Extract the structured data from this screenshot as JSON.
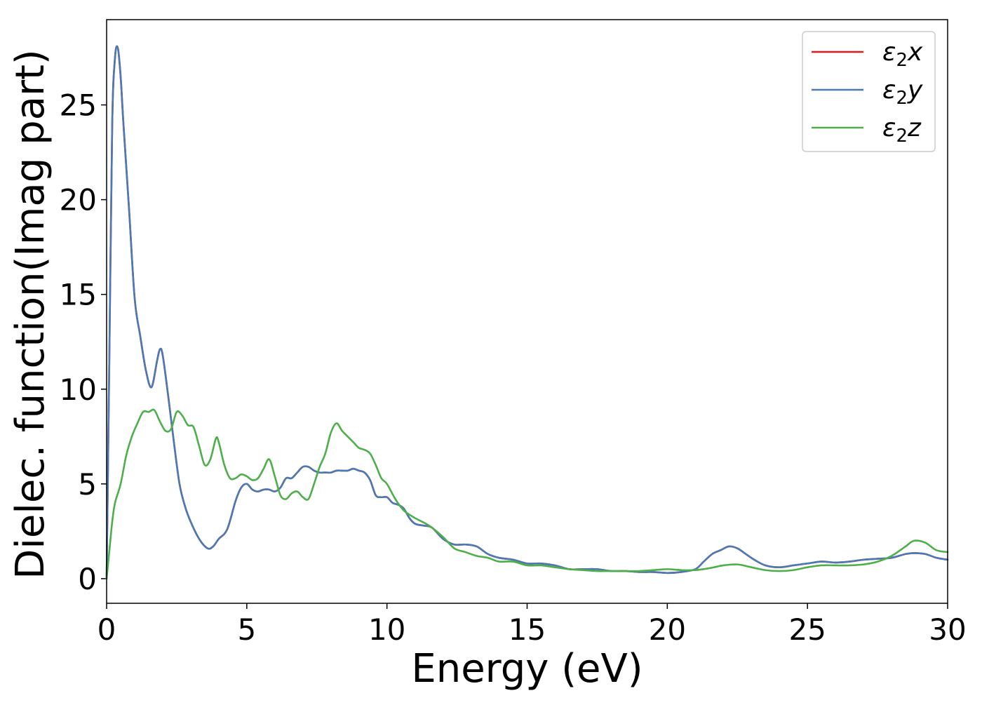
{
  "chart_data": {
    "type": "line",
    "title": "",
    "xlabel": "Energy (eV)",
    "ylabel": "Dielec. function(Imag part)",
    "xlim": [
      0,
      30
    ],
    "ylim": [
      -1.3,
      29.5
    ],
    "xticks": [
      0,
      5,
      10,
      15,
      20,
      25,
      30
    ],
    "yticks": [
      0,
      5,
      10,
      15,
      20,
      25
    ],
    "grid": false,
    "legend_position": "top-right",
    "series": [
      {
        "name": "ε₂x",
        "legend_base": "ε",
        "legend_sub": "2",
        "legend_axis": "x",
        "color": "#e41a1c",
        "x": [
          0,
          0.1,
          0.2,
          0.3,
          0.4,
          0.5,
          0.6,
          0.8,
          1.0,
          1.2,
          1.4,
          1.6,
          1.8,
          1.9,
          2.0,
          2.2,
          2.4,
          2.6,
          2.8,
          3.0,
          3.3,
          3.6,
          3.8,
          4.0,
          4.3,
          4.6,
          4.8,
          5.0,
          5.2,
          5.4,
          5.6,
          5.8,
          6.0,
          6.2,
          6.4,
          6.6,
          6.8,
          7.0,
          7.2,
          7.4,
          7.6,
          7.8,
          8.0,
          8.2,
          8.4,
          8.6,
          8.8,
          9.0,
          9.2,
          9.4,
          9.6,
          9.8,
          10.0,
          10.2,
          10.4,
          10.6,
          10.8,
          11.0,
          11.3,
          11.6,
          12.0,
          12.4,
          12.8,
          13.2,
          13.6,
          14.0,
          14.5,
          15.0,
          15.5,
          16.0,
          16.5,
          17.0,
          17.5,
          18.0,
          18.5,
          19.0,
          19.5,
          20.0,
          20.5,
          21.0,
          21.3,
          21.6,
          21.9,
          22.2,
          22.5,
          22.8,
          23.1,
          23.5,
          24.0,
          24.5,
          25.0,
          25.5,
          26.0,
          26.5,
          27.0,
          27.5,
          28.0,
          28.5,
          28.8,
          29.2,
          29.6,
          30.0
        ],
        "y": [
          0,
          12,
          24,
          27.5,
          28.0,
          26.5,
          24.0,
          19.5,
          14.8,
          12.8,
          11.0,
          10.1,
          11.5,
          12.1,
          11.8,
          9.6,
          7.2,
          5.0,
          3.8,
          3.0,
          2.1,
          1.6,
          1.7,
          2.1,
          2.6,
          4.1,
          4.8,
          5.0,
          4.7,
          4.6,
          4.7,
          4.7,
          4.6,
          4.8,
          5.3,
          5.3,
          5.6,
          5.9,
          5.9,
          5.7,
          5.6,
          5.6,
          5.6,
          5.7,
          5.7,
          5.7,
          5.8,
          5.7,
          5.6,
          5.2,
          4.4,
          4.3,
          4.3,
          4.0,
          3.9,
          3.7,
          3.2,
          2.9,
          2.8,
          2.7,
          2.1,
          1.8,
          1.8,
          1.7,
          1.3,
          1.1,
          1.0,
          0.8,
          0.8,
          0.7,
          0.5,
          0.5,
          0.5,
          0.4,
          0.4,
          0.35,
          0.35,
          0.3,
          0.35,
          0.5,
          0.9,
          1.3,
          1.5,
          1.7,
          1.6,
          1.3,
          1.0,
          0.7,
          0.6,
          0.7,
          0.8,
          0.9,
          0.85,
          0.9,
          1.0,
          1.05,
          1.1,
          1.3,
          1.35,
          1.3,
          1.1,
          1.0
        ]
      },
      {
        "name": "ε₂y",
        "legend_base": "ε",
        "legend_sub": "2",
        "legend_axis": "y",
        "color": "#4a7ab5",
        "x": [
          0,
          0.1,
          0.2,
          0.3,
          0.4,
          0.5,
          0.6,
          0.8,
          1.0,
          1.2,
          1.4,
          1.6,
          1.8,
          1.9,
          2.0,
          2.2,
          2.4,
          2.6,
          2.8,
          3.0,
          3.3,
          3.6,
          3.8,
          4.0,
          4.3,
          4.6,
          4.8,
          5.0,
          5.2,
          5.4,
          5.6,
          5.8,
          6.0,
          6.2,
          6.4,
          6.6,
          6.8,
          7.0,
          7.2,
          7.4,
          7.6,
          7.8,
          8.0,
          8.2,
          8.4,
          8.6,
          8.8,
          9.0,
          9.2,
          9.4,
          9.6,
          9.8,
          10.0,
          10.2,
          10.4,
          10.6,
          10.8,
          11.0,
          11.3,
          11.6,
          12.0,
          12.4,
          12.8,
          13.2,
          13.6,
          14.0,
          14.5,
          15.0,
          15.5,
          16.0,
          16.5,
          17.0,
          17.5,
          18.0,
          18.5,
          19.0,
          19.5,
          20.0,
          20.5,
          21.0,
          21.3,
          21.6,
          21.9,
          22.2,
          22.5,
          22.8,
          23.1,
          23.5,
          24.0,
          24.5,
          25.0,
          25.5,
          26.0,
          26.5,
          27.0,
          27.5,
          28.0,
          28.5,
          28.8,
          29.2,
          29.6,
          30.0
        ],
        "y": [
          0,
          12,
          24,
          27.5,
          28.0,
          26.5,
          24.0,
          19.5,
          14.8,
          12.8,
          11.0,
          10.1,
          11.5,
          12.1,
          11.8,
          9.6,
          7.2,
          5.0,
          3.8,
          3.0,
          2.1,
          1.6,
          1.7,
          2.1,
          2.6,
          4.1,
          4.8,
          5.0,
          4.7,
          4.6,
          4.7,
          4.7,
          4.6,
          4.8,
          5.3,
          5.3,
          5.6,
          5.9,
          5.9,
          5.7,
          5.6,
          5.6,
          5.6,
          5.7,
          5.7,
          5.7,
          5.8,
          5.7,
          5.6,
          5.2,
          4.4,
          4.3,
          4.3,
          4.0,
          3.9,
          3.7,
          3.2,
          2.9,
          2.8,
          2.7,
          2.1,
          1.8,
          1.8,
          1.7,
          1.3,
          1.1,
          1.0,
          0.8,
          0.8,
          0.7,
          0.5,
          0.5,
          0.5,
          0.4,
          0.4,
          0.35,
          0.35,
          0.3,
          0.35,
          0.5,
          0.9,
          1.3,
          1.5,
          1.7,
          1.6,
          1.3,
          1.0,
          0.7,
          0.6,
          0.7,
          0.8,
          0.9,
          0.85,
          0.9,
          1.0,
          1.05,
          1.1,
          1.3,
          1.35,
          1.3,
          1.1,
          1.0
        ]
      },
      {
        "name": "ε₂z",
        "legend_base": "ε",
        "legend_sub": "2",
        "legend_axis": "z",
        "color": "#4daf4a",
        "x": [
          0,
          0.1,
          0.2,
          0.3,
          0.5,
          0.7,
          0.9,
          1.1,
          1.3,
          1.5,
          1.7,
          1.9,
          2.1,
          2.3,
          2.5,
          2.7,
          2.9,
          3.1,
          3.3,
          3.5,
          3.7,
          3.9,
          4.0,
          4.2,
          4.4,
          4.6,
          4.8,
          5.0,
          5.2,
          5.4,
          5.6,
          5.8,
          6.0,
          6.2,
          6.4,
          6.6,
          6.8,
          7.0,
          7.2,
          7.4,
          7.6,
          7.8,
          8.0,
          8.2,
          8.4,
          8.6,
          8.8,
          9.0,
          9.2,
          9.4,
          9.6,
          9.8,
          10.0,
          10.3,
          10.6,
          11.0,
          11.5,
          12.0,
          12.4,
          12.8,
          13.2,
          13.6,
          14.0,
          14.5,
          15.0,
          15.5,
          16.0,
          16.5,
          17.0,
          17.5,
          18.0,
          18.5,
          19.0,
          19.5,
          20.0,
          20.5,
          21.0,
          21.5,
          22.0,
          22.5,
          23.0,
          23.5,
          24.0,
          24.5,
          25.0,
          25.5,
          26.0,
          26.5,
          27.0,
          27.5,
          28.0,
          28.5,
          28.8,
          29.2,
          29.6,
          30.0
        ],
        "y": [
          0,
          1.5,
          3.0,
          4.0,
          5.0,
          6.5,
          7.5,
          8.2,
          8.8,
          8.8,
          8.9,
          8.3,
          7.8,
          7.9,
          8.8,
          8.6,
          8.1,
          8.0,
          7.0,
          6.0,
          6.3,
          7.4,
          7.2,
          6.0,
          5.3,
          5.3,
          5.5,
          5.4,
          5.2,
          5.3,
          5.8,
          6.3,
          5.4,
          4.4,
          4.2,
          4.5,
          4.6,
          4.3,
          4.2,
          5.0,
          5.9,
          6.6,
          7.7,
          8.2,
          7.8,
          7.5,
          7.2,
          6.9,
          6.8,
          6.6,
          6.0,
          5.3,
          5.0,
          4.2,
          3.6,
          3.2,
          2.8,
          2.2,
          1.6,
          1.4,
          1.2,
          1.1,
          0.9,
          0.9,
          0.7,
          0.7,
          0.6,
          0.5,
          0.45,
          0.4,
          0.4,
          0.4,
          0.4,
          0.45,
          0.5,
          0.45,
          0.45,
          0.55,
          0.7,
          0.75,
          0.6,
          0.45,
          0.4,
          0.45,
          0.6,
          0.7,
          0.7,
          0.7,
          0.75,
          0.9,
          1.2,
          1.7,
          2.0,
          1.9,
          1.5,
          1.4
        ]
      }
    ]
  }
}
